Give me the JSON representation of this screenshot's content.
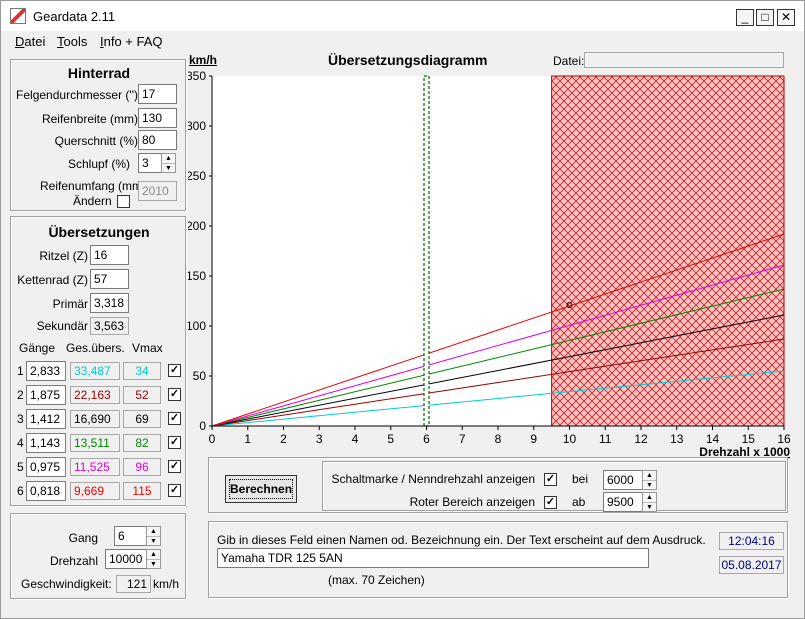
{
  "window": {
    "title": "Geardata 2.11",
    "minimize_glyph": "_",
    "maximize_glyph": "□",
    "close_glyph": "✕"
  },
  "menu": [
    {
      "underline": "D",
      "rest": "atei"
    },
    {
      "underline": "T",
      "rest": "ools"
    },
    {
      "underline": "I",
      "rest": "nfo + FAQ"
    }
  ],
  "hinterrad": {
    "heading": "Hinterrad",
    "felgen_label": "Felgendurchmesser ('')",
    "felgen_value": "17",
    "reifenbreite_label": "Reifenbreite (mm)",
    "reifenbreite_value": "130",
    "querschnitt_label": "Querschnitt (%)",
    "querschnitt_value": "80",
    "schlupf_label": "Schlupf (%)",
    "schlupf_value": "3",
    "reifenumfang_label": "Reifenumfang (mm)",
    "aendern_label": "Ändern",
    "reifenumfang_value": "2010"
  },
  "uebersetzungen": {
    "heading": "Übersetzungen",
    "ritzel_label": "Ritzel (Z)",
    "ritzel_value": "16",
    "kettenrad_label": "Kettenrad (Z)",
    "kettenrad_value": "57",
    "primaer_label": "Primär",
    "primaer_value": "3,318",
    "sekundaer_label": "Sekundär",
    "sekundaer_value": "3,563",
    "col_gaenge": "Gänge",
    "col_ges": "Ges.übers.",
    "col_vmax": "Vmax",
    "gears": [
      {
        "num": "1",
        "ratio": "2,833",
        "total": "33,487",
        "vmax": "34",
        "color": "#00cccc",
        "checked": true
      },
      {
        "num": "2",
        "ratio": "1,875",
        "total": "22,163",
        "vmax": "52",
        "color": "#990000",
        "checked": true
      },
      {
        "num": "3",
        "ratio": "1,412",
        "total": "16,690",
        "vmax": "69",
        "color": "#000000",
        "checked": true
      },
      {
        "num": "4",
        "ratio": "1,143",
        "total": "13,511",
        "vmax": "82",
        "color": "#008800",
        "checked": true
      },
      {
        "num": "5",
        "ratio": "0,975",
        "total": "11,525",
        "vmax": "96",
        "color": "#e000e0",
        "checked": true
      },
      {
        "num": "6",
        "ratio": "0,818",
        "total": "9,669",
        "vmax": "115",
        "color": "#ee0000",
        "checked": true
      }
    ]
  },
  "calc": {
    "gang_label": "Gang",
    "gang_value": "6",
    "drehzahl_label": "Drehzahl",
    "drehzahl_value": "10000",
    "geschw_label": "Geschwindigkeit:",
    "geschw_value": "121",
    "geschw_unit": "km/h"
  },
  "diagram": {
    "title": "Übersetzungsdiagramm",
    "datei_label": "Datei:",
    "datei_value": ""
  },
  "chart_data": {
    "type": "line",
    "title": "Übersetzungsdiagramm",
    "ylabel": "km/h",
    "xlabel": "Drehzahl x 1000",
    "xlim": [
      0,
      16
    ],
    "ylim": [
      0,
      350
    ],
    "x_ticks": [
      0,
      1,
      2,
      3,
      4,
      5,
      6,
      7,
      8,
      9,
      10,
      11,
      12,
      13,
      14,
      15,
      16
    ],
    "y_ticks": [
      0,
      50,
      100,
      150,
      200,
      250,
      300,
      350
    ],
    "series": [
      {
        "name": "1",
        "color": "#00cccc",
        "x": [
          0,
          16
        ],
        "y": [
          0,
          55
        ]
      },
      {
        "name": "2",
        "color": "#990000",
        "x": [
          0,
          16
        ],
        "y": [
          0,
          87
        ]
      },
      {
        "name": "3",
        "color": "#000000",
        "x": [
          0,
          16
        ],
        "y": [
          0,
          111
        ]
      },
      {
        "name": "4",
        "color": "#008800",
        "x": [
          0,
          16
        ],
        "y": [
          0,
          137
        ]
      },
      {
        "name": "5",
        "color": "#e000e0",
        "x": [
          0,
          16
        ],
        "y": [
          0,
          161
        ]
      },
      {
        "name": "6",
        "color": "#ee0000",
        "x": [
          0,
          16
        ],
        "y": [
          0,
          192
        ]
      }
    ],
    "shift_marker_rpm": 6,
    "red_zone_start": 9.5,
    "marker_point": {
      "x": 10,
      "y": 121
    }
  },
  "options": {
    "schaltmarke_label": "Schaltmarke / Nenndrehzahl anzeigen",
    "schaltmarke_checked": true,
    "bei_label": "bei",
    "bei_value": "6000",
    "roter_label": "Roter Bereich anzeigen",
    "roter_checked": true,
    "ab_label": "ab",
    "ab_value": "9500",
    "berechnen_label": "Berechnen"
  },
  "note": {
    "instruction": "Gib in dieses Feld einen Namen od. Bezeichnung ein. Der Text erscheint auf dem Ausdruck.",
    "value": "Yamaha TDR 125 5AN",
    "max_hint": "(max. 70 Zeichen)",
    "time": "12:04:16",
    "date": "05.08.2017"
  }
}
